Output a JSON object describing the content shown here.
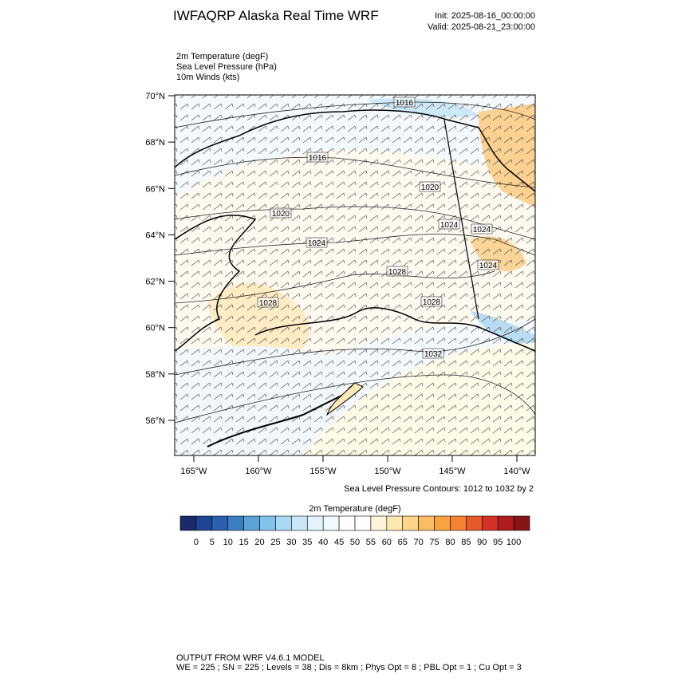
{
  "header": {
    "title": "IWFAQRP Alaska Real Time WRF",
    "init": "Init: 2025-08-16_00:00:00",
    "valid": "Valid: 2025-08-21_23:00:00"
  },
  "fields": [
    "2m Temperature   (degF)",
    "Sea Level Pressure   (hPa)",
    "10m Winds   (kts)"
  ],
  "map": {
    "lat_ticks": [
      {
        "value": 70,
        "label": "70°N"
      },
      {
        "value": 68,
        "label": "68°N"
      },
      {
        "value": 66,
        "label": "66°N"
      },
      {
        "value": 64,
        "label": "64°N"
      },
      {
        "value": 62,
        "label": "62°N"
      },
      {
        "value": 60,
        "label": "60°N"
      },
      {
        "value": 58,
        "label": "58°N"
      },
      {
        "value": 56,
        "label": "56°N"
      }
    ],
    "lon_ticks": [
      {
        "value": -165,
        "label": "165°W"
      },
      {
        "value": -160,
        "label": "160°W"
      },
      {
        "value": -155,
        "label": "155°W"
      },
      {
        "value": -150,
        "label": "150°W"
      },
      {
        "value": -145,
        "label": "145°W"
      },
      {
        "value": -140,
        "label": "140°W"
      }
    ],
    "contour_labels": [
      "1016",
      "1016",
      "1020",
      "1020",
      "1024",
      "1024",
      "1024",
      "1024",
      "1028",
      "1028",
      "1028",
      "1032"
    ],
    "contour_note": "Sea Level Pressure Contours: 1012 to 1032 by 2"
  },
  "colorbar": {
    "title": "2m Temperature  (degF)",
    "levels": [
      0,
      5,
      10,
      15,
      20,
      25,
      30,
      35,
      40,
      45,
      50,
      55,
      60,
      65,
      70,
      75,
      80,
      85,
      90,
      95,
      100
    ],
    "colors": [
      "#1b2a68",
      "#1e4593",
      "#2a60ad",
      "#3b7fc3",
      "#5ba3d9",
      "#83c2ea",
      "#a8daf4",
      "#c8e8f7",
      "#e2f3fb",
      "#f0f9fd",
      "#ffffff",
      "#ffffff",
      "#fff5db",
      "#fee7b0",
      "#fdd588",
      "#fbbd62",
      "#f9a23f",
      "#f38332",
      "#e65b2b",
      "#d23326",
      "#b01d20",
      "#861518"
    ]
  },
  "footer": {
    "line1": "OUTPUT FROM WRF V4.6.1 MODEL",
    "line2": "WE = 225 ; SN = 225 ; Levels = 38 ; Dis = 8km ; Phys Opt = 8 ; PBL Opt = 1 ; Cu Opt = 3"
  }
}
